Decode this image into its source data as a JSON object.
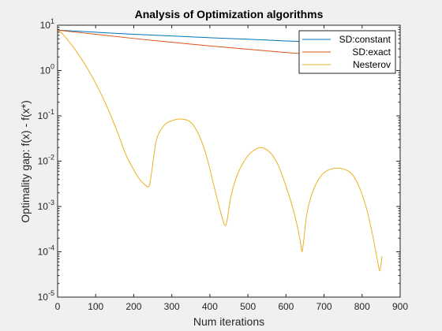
{
  "chart_data": {
    "type": "line",
    "title": "Analysis of Optimization algorithms",
    "xlabel": "Num iterations",
    "ylabel": "Optimality gap: f(x) - f(x*)",
    "xlim": [
      0,
      900
    ],
    "ylim": [
      1e-05,
      10
    ],
    "yscale": "log",
    "xticks": [
      0,
      100,
      200,
      300,
      400,
      500,
      600,
      700,
      800,
      900
    ],
    "yticks": [
      {
        "base": "10",
        "exp": "1"
      },
      {
        "base": "10",
        "exp": "0"
      },
      {
        "base": "10",
        "exp": "-1"
      },
      {
        "base": "10",
        "exp": "-2"
      },
      {
        "base": "10",
        "exp": "-3"
      },
      {
        "base": "10",
        "exp": "-4"
      },
      {
        "base": "10",
        "exp": "-5"
      }
    ],
    "grid": false,
    "legend_position": "top-right",
    "series": [
      {
        "name": "SD:constant",
        "color": "#0072BD",
        "x": [
          0,
          100,
          200,
          300,
          400,
          500,
          600,
          700,
          800,
          850
        ],
        "y": [
          7.8,
          7.0,
          6.3,
          5.8,
          5.3,
          4.9,
          4.5,
          4.2,
          3.9,
          3.8
        ]
      },
      {
        "name": "SD:exact",
        "color": "#D95319",
        "x": [
          0,
          100,
          200,
          300,
          400,
          500,
          600,
          700,
          800,
          850
        ],
        "y": [
          7.8,
          6.3,
          5.1,
          4.2,
          3.5,
          2.95,
          2.5,
          2.15,
          1.9,
          1.8
        ]
      },
      {
        "name": "Nesterov",
        "color": "#EDB120",
        "x": [
          0,
          10,
          20,
          40,
          60,
          80,
          100,
          120,
          140,
          160,
          180,
          200,
          215,
          228,
          234,
          238,
          242,
          248,
          260,
          280,
          300,
          325,
          350,
          370,
          390,
          410,
          425,
          435,
          440,
          445,
          455,
          470,
          490,
          510,
          535,
          560,
          580,
          600,
          620,
          632,
          638,
          642,
          646,
          655,
          670,
          690,
          710,
          740,
          770,
          790,
          810,
          825,
          835,
          842,
          846,
          850,
          852
        ],
        "y": [
          7.8,
          6.8,
          5.5,
          3.4,
          1.95,
          1.05,
          0.52,
          0.24,
          0.1,
          0.038,
          0.0135,
          0.0065,
          0.004,
          0.0031,
          0.00278,
          0.0027,
          0.0031,
          0.0065,
          0.03,
          0.062,
          0.078,
          0.085,
          0.072,
          0.04,
          0.014,
          0.003,
          0.00095,
          0.00048,
          0.00038,
          0.00048,
          0.0016,
          0.0045,
          0.01,
          0.016,
          0.02,
          0.015,
          0.008,
          0.0028,
          0.0008,
          0.0003,
          0.00016,
          0.0001,
          0.00016,
          0.0007,
          0.0021,
          0.0045,
          0.0063,
          0.007,
          0.0055,
          0.003,
          0.001,
          0.0003,
          0.00011,
          5.5e-05,
          3.8e-05,
          5.5e-05,
          8e-05
        ]
      }
    ]
  }
}
